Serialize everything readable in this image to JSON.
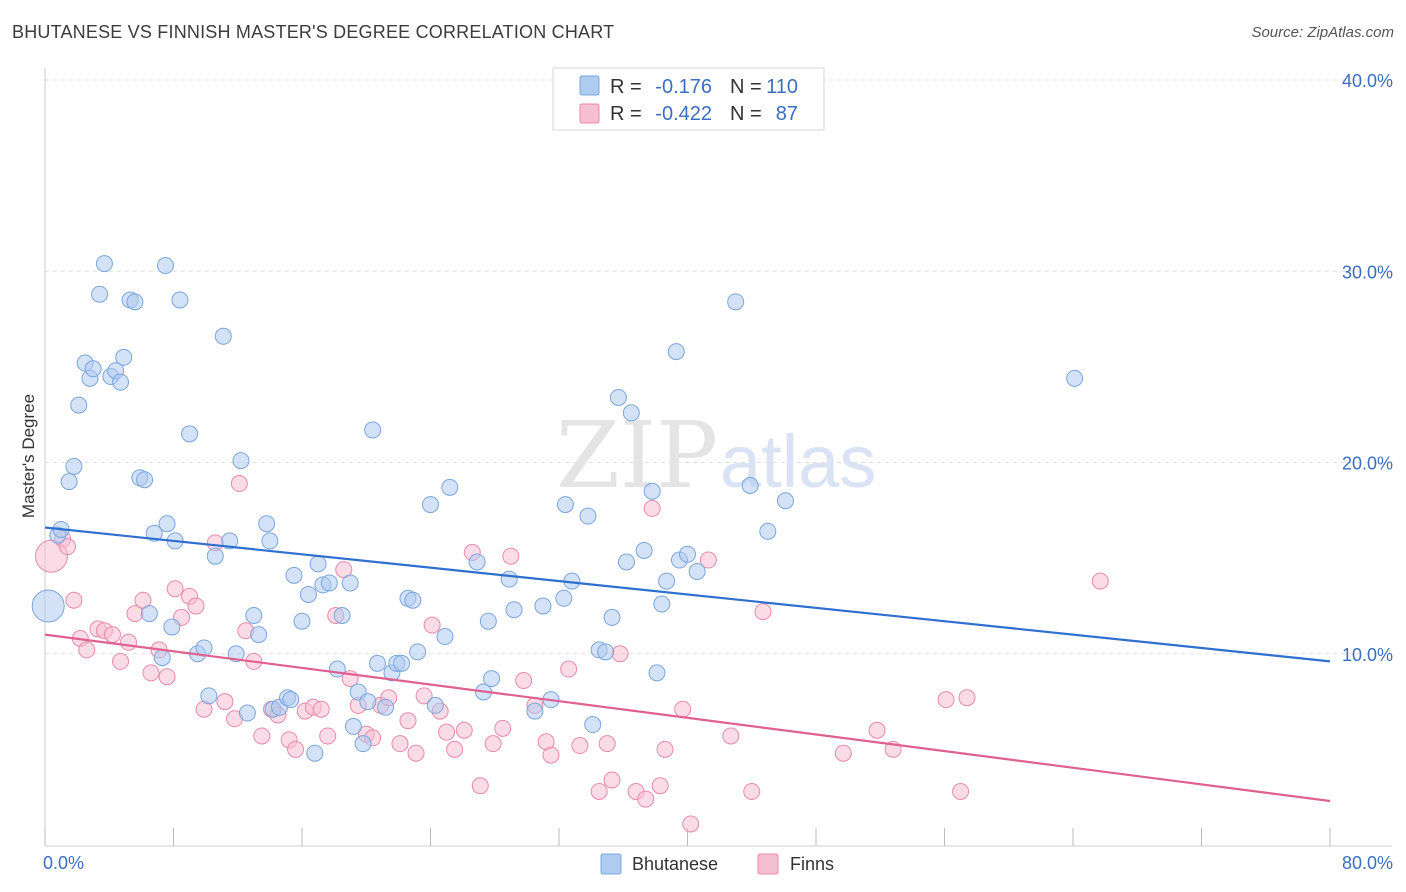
{
  "title": "BHUTANESE VS FINNISH MASTER'S DEGREE CORRELATION CHART",
  "source": "Source: ZipAtlas.com",
  "watermark": {
    "zip": "ZIP",
    "atlas": "atlas"
  },
  "colors": {
    "blue_fill": "#aecbf0",
    "blue_stroke": "#7aa6dd",
    "blue_line": "#2f6fcf",
    "pink_fill": "#f7bfd2",
    "pink_stroke": "#e98aab",
    "pink_line": "#e0608f",
    "grid": "#dddddd",
    "tick_text": "#3a6fc0"
  },
  "legend": {
    "rows": [
      {
        "series": "Bhutanese",
        "r_label": "R =",
        "r_value": "-0.176",
        "n_label": "N =",
        "n_value": "110"
      },
      {
        "series": "Finns",
        "r_label": "R =",
        "r_value": "-0.422",
        "n_label": "N =",
        "n_value": "87"
      }
    ]
  },
  "chart_data": {
    "type": "scatter",
    "title": "BHUTANESE VS FINNISH MASTER'S DEGREE CORRELATION CHART",
    "xlabel": "",
    "ylabel": "Master's Degree",
    "xlim": [
      0,
      80
    ],
    "ylim": [
      0,
      40
    ],
    "x_tick_labels": [
      "0.0%",
      "80.0%"
    ],
    "y_ticks": [
      10,
      20,
      30,
      40
    ],
    "y_tick_labels": [
      "10.0%",
      "20.0%",
      "30.0%",
      "40.0%"
    ],
    "grid": true,
    "legend_position": "bottom-center",
    "series": [
      {
        "name": "Bhutanese",
        "color": "#aecbf0",
        "trend": {
          "x": [
            0,
            80
          ],
          "y": [
            16.6,
            9.6
          ]
        },
        "points": [
          [
            0.2,
            12.5
          ],
          [
            0.8,
            16.2
          ],
          [
            1.0,
            16.5
          ],
          [
            1.5,
            19.0
          ],
          [
            1.8,
            19.8
          ],
          [
            2.1,
            23.0
          ],
          [
            2.5,
            25.2
          ],
          [
            2.8,
            24.4
          ],
          [
            3.0,
            24.9
          ],
          [
            3.4,
            28.8
          ],
          [
            3.7,
            30.4
          ],
          [
            4.1,
            24.5
          ],
          [
            4.4,
            24.8
          ],
          [
            4.7,
            24.2
          ],
          [
            4.9,
            25.5
          ],
          [
            5.3,
            28.5
          ],
          [
            5.6,
            28.4
          ],
          [
            5.9,
            19.2
          ],
          [
            6.2,
            19.1
          ],
          [
            6.5,
            12.1
          ],
          [
            6.8,
            16.3
          ],
          [
            7.3,
            9.8
          ],
          [
            7.6,
            16.8
          ],
          [
            7.9,
            11.4
          ],
          [
            8.1,
            15.9
          ],
          [
            8.4,
            28.5
          ],
          [
            7.5,
            30.3
          ],
          [
            9.0,
            21.5
          ],
          [
            9.5,
            10.0
          ],
          [
            9.9,
            10.3
          ],
          [
            10.2,
            7.8
          ],
          [
            10.6,
            15.1
          ],
          [
            11.1,
            26.6
          ],
          [
            11.5,
            15.9
          ],
          [
            11.9,
            10.0
          ],
          [
            12.2,
            20.1
          ],
          [
            12.6,
            6.9
          ],
          [
            13.0,
            12.0
          ],
          [
            13.3,
            11.0
          ],
          [
            13.8,
            16.8
          ],
          [
            14.0,
            15.9
          ],
          [
            14.2,
            7.1
          ],
          [
            14.6,
            7.2
          ],
          [
            15.1,
            7.7
          ],
          [
            15.3,
            7.6
          ],
          [
            15.5,
            14.1
          ],
          [
            16.0,
            11.7
          ],
          [
            16.4,
            13.1
          ],
          [
            16.8,
            4.8
          ],
          [
            17.0,
            14.7
          ],
          [
            17.3,
            13.6
          ],
          [
            17.7,
            13.7
          ],
          [
            18.2,
            9.2
          ],
          [
            18.5,
            12.0
          ],
          [
            19.0,
            13.7
          ],
          [
            19.2,
            6.2
          ],
          [
            19.5,
            8.0
          ],
          [
            19.8,
            5.3
          ],
          [
            20.1,
            7.5
          ],
          [
            20.4,
            21.7
          ],
          [
            20.7,
            9.5
          ],
          [
            21.2,
            7.2
          ],
          [
            21.6,
            9.0
          ],
          [
            21.9,
            9.5
          ],
          [
            22.2,
            9.5
          ],
          [
            22.6,
            12.9
          ],
          [
            22.9,
            12.8
          ],
          [
            23.2,
            10.1
          ],
          [
            24.0,
            17.8
          ],
          [
            24.3,
            7.3
          ],
          [
            24.9,
            10.9
          ],
          [
            25.2,
            18.7
          ],
          [
            26.9,
            14.8
          ],
          [
            27.3,
            8.0
          ],
          [
            27.6,
            11.7
          ],
          [
            27.8,
            8.7
          ],
          [
            28.9,
            13.9
          ],
          [
            29.2,
            12.3
          ],
          [
            30.5,
            7.0
          ],
          [
            31.0,
            12.5
          ],
          [
            31.5,
            7.6
          ],
          [
            32.3,
            12.9
          ],
          [
            32.4,
            17.8
          ],
          [
            32.8,
            13.8
          ],
          [
            33.8,
            17.2
          ],
          [
            34.1,
            6.3
          ],
          [
            34.5,
            10.2
          ],
          [
            34.9,
            10.1
          ],
          [
            35.3,
            11.9
          ],
          [
            36.2,
            14.8
          ],
          [
            35.7,
            23.4
          ],
          [
            36.5,
            22.6
          ],
          [
            37.3,
            15.4
          ],
          [
            37.8,
            18.5
          ],
          [
            38.1,
            9.0
          ],
          [
            38.4,
            12.6
          ],
          [
            38.7,
            13.8
          ],
          [
            39.3,
            25.8
          ],
          [
            39.5,
            14.9
          ],
          [
            40.0,
            15.2
          ],
          [
            40.6,
            14.3
          ],
          [
            43.0,
            28.4
          ],
          [
            43.9,
            18.8
          ],
          [
            45.0,
            16.4
          ],
          [
            46.1,
            18.0
          ],
          [
            64.1,
            24.4
          ]
        ]
      },
      {
        "name": "Finns",
        "color": "#f7bfd2",
        "trend": {
          "x": [
            0,
            80
          ],
          "y": [
            11.0,
            2.3
          ]
        },
        "points": [
          [
            0.4,
            15.1
          ],
          [
            1.1,
            16.0
          ],
          [
            1.4,
            15.6
          ],
          [
            1.8,
            12.8
          ],
          [
            2.2,
            10.8
          ],
          [
            2.6,
            10.2
          ],
          [
            3.3,
            11.3
          ],
          [
            3.7,
            11.2
          ],
          [
            4.2,
            11.0
          ],
          [
            4.7,
            9.6
          ],
          [
            5.2,
            10.6
          ],
          [
            5.6,
            12.1
          ],
          [
            6.1,
            12.8
          ],
          [
            6.6,
            9.0
          ],
          [
            7.1,
            10.2
          ],
          [
            7.6,
            8.8
          ],
          [
            8.1,
            13.4
          ],
          [
            8.5,
            11.9
          ],
          [
            9.0,
            13.0
          ],
          [
            9.4,
            12.5
          ],
          [
            9.9,
            7.1
          ],
          [
            10.6,
            15.8
          ],
          [
            11.2,
            7.5
          ],
          [
            11.8,
            6.6
          ],
          [
            12.1,
            18.9
          ],
          [
            12.5,
            11.2
          ],
          [
            13.0,
            9.6
          ],
          [
            13.5,
            5.7
          ],
          [
            14.1,
            7.1
          ],
          [
            14.5,
            6.8
          ],
          [
            15.2,
            5.5
          ],
          [
            15.6,
            5.0
          ],
          [
            16.2,
            7.0
          ],
          [
            16.7,
            7.2
          ],
          [
            17.2,
            7.1
          ],
          [
            17.6,
            5.7
          ],
          [
            18.1,
            12.0
          ],
          [
            18.6,
            14.4
          ],
          [
            19.0,
            8.7
          ],
          [
            19.5,
            7.3
          ],
          [
            20.0,
            5.8
          ],
          [
            20.4,
            5.6
          ],
          [
            20.9,
            7.3
          ],
          [
            21.4,
            7.7
          ],
          [
            22.1,
            5.3
          ],
          [
            22.6,
            6.5
          ],
          [
            23.1,
            4.8
          ],
          [
            23.6,
            7.8
          ],
          [
            24.1,
            11.5
          ],
          [
            24.6,
            7.0
          ],
          [
            25.0,
            5.9
          ],
          [
            25.5,
            5.0
          ],
          [
            26.1,
            6.0
          ],
          [
            26.6,
            15.3
          ],
          [
            27.1,
            3.1
          ],
          [
            27.9,
            5.3
          ],
          [
            28.5,
            6.1
          ],
          [
            29.0,
            15.1
          ],
          [
            29.8,
            8.6
          ],
          [
            30.5,
            7.3
          ],
          [
            31.2,
            5.4
          ],
          [
            31.5,
            4.7
          ],
          [
            32.6,
            9.2
          ],
          [
            33.3,
            5.2
          ],
          [
            34.5,
            2.8
          ],
          [
            35.0,
            5.3
          ],
          [
            35.3,
            3.4
          ],
          [
            35.8,
            10.0
          ],
          [
            36.8,
            2.8
          ],
          [
            37.4,
            2.4
          ],
          [
            37.8,
            17.6
          ],
          [
            38.3,
            3.1
          ],
          [
            38.6,
            5.0
          ],
          [
            39.7,
            7.1
          ],
          [
            40.2,
            1.1
          ],
          [
            41.3,
            14.9
          ],
          [
            42.7,
            5.7
          ],
          [
            44.0,
            2.8
          ],
          [
            44.7,
            12.2
          ],
          [
            49.7,
            4.8
          ],
          [
            51.8,
            6.0
          ],
          [
            52.8,
            5.0
          ],
          [
            56.1,
            7.6
          ],
          [
            57.0,
            2.8
          ],
          [
            57.4,
            7.7
          ],
          [
            65.7,
            13.8
          ]
        ]
      }
    ]
  },
  "bottom_legend": [
    {
      "label": "Bhutanese"
    },
    {
      "label": "Finns"
    }
  ]
}
